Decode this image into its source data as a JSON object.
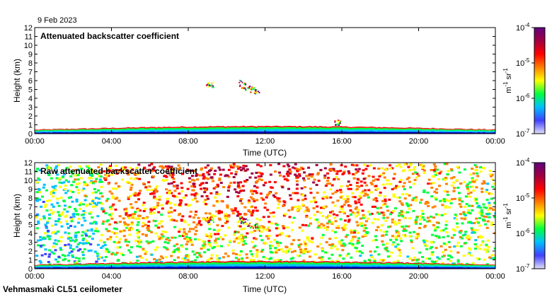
{
  "date": "9 Feb 2023",
  "footer": "Vehmasmaki CL51 ceilometer",
  "colorscale": {
    "stops": [
      "#e0e0f8",
      "#4040ff",
      "#00c0ff",
      "#00ff40",
      "#ffff00",
      "#ff8000",
      "#ff0000",
      "#a00040",
      "#600080"
    ]
  },
  "chart_data": [
    {
      "type": "heatmap",
      "title": "Attenuated backscatter coefficient",
      "xlabel": "Time (UTC)",
      "ylabel": "Height (km)",
      "x_ticks": [
        "00:00",
        "04:00",
        "08:00",
        "12:00",
        "16:00",
        "20:00",
        "00:00"
      ],
      "x_range_hours": [
        0,
        24
      ],
      "y_ticks": [
        "0",
        "1",
        "2",
        "3",
        "4",
        "5",
        "6",
        "7",
        "8",
        "9",
        "10",
        "11",
        "12"
      ],
      "ylim": [
        0,
        12
      ],
      "colorbar": {
        "unit_m": "m",
        "unit_m_exp": "-1",
        "unit_sr": " sr",
        "unit_sr_exp": "-1",
        "ticks": [
          {
            "base": "10",
            "exp": "-4",
            "value": 0.0001
          },
          {
            "base": "10",
            "exp": "-5",
            "value": 1e-05
          },
          {
            "base": "10",
            "exp": "-6",
            "value": 1e-06
          },
          {
            "base": "10",
            "exp": "-7",
            "value": 1e-07
          }
        ],
        "scale": "log"
      },
      "features": [
        {
          "kind": "boundary-layer",
          "from_h": 0,
          "to_h": 24,
          "top_km": 0.8
        },
        {
          "kind": "cloud",
          "from_h": 8.9,
          "to_h": 9.3,
          "height_km": 5.6
        },
        {
          "kind": "cloud-descending",
          "from_h": 10.6,
          "to_h": 11.7,
          "start_km": 5.6,
          "end_km": 4.4
        },
        {
          "kind": "cloud",
          "from_h": 15.6,
          "to_h": 15.9,
          "height_km": 1.3
        }
      ]
    },
    {
      "type": "heatmap",
      "title": "Raw attenuated backscatter coefficient",
      "xlabel": "Time (UTC)",
      "ylabel": "Height (km)",
      "x_ticks": [
        "00:00",
        "04:00",
        "08:00",
        "12:00",
        "16:00",
        "20:00",
        "00:00"
      ],
      "x_range_hours": [
        0,
        24
      ],
      "y_ticks": [
        "0",
        "1",
        "2",
        "3",
        "4",
        "5",
        "6",
        "7",
        "8",
        "9",
        "10",
        "11",
        "12"
      ],
      "ylim": [
        0,
        12
      ],
      "colorbar": {
        "unit_m": "m",
        "unit_m_exp": "-1",
        "unit_sr": " sr",
        "unit_sr_exp": "-1",
        "ticks": [
          {
            "base": "10",
            "exp": "-4",
            "value": 0.0001
          },
          {
            "base": "10",
            "exp": "-5",
            "value": 1e-05
          },
          {
            "base": "10",
            "exp": "-6",
            "value": 1e-06
          },
          {
            "base": "10",
            "exp": "-7",
            "value": 1e-07
          }
        ],
        "scale": "log"
      },
      "features": [
        {
          "kind": "noise-background",
          "from_h": 0,
          "to_h": 24
        },
        {
          "kind": "boundary-layer",
          "from_h": 0,
          "to_h": 24,
          "top_km": 0.8
        },
        {
          "kind": "cloud",
          "from_h": 8.9,
          "to_h": 9.3,
          "height_km": 5.6
        },
        {
          "kind": "cloud-descending",
          "from_h": 10.6,
          "to_h": 11.7,
          "start_km": 5.6,
          "end_km": 4.4
        }
      ]
    }
  ]
}
